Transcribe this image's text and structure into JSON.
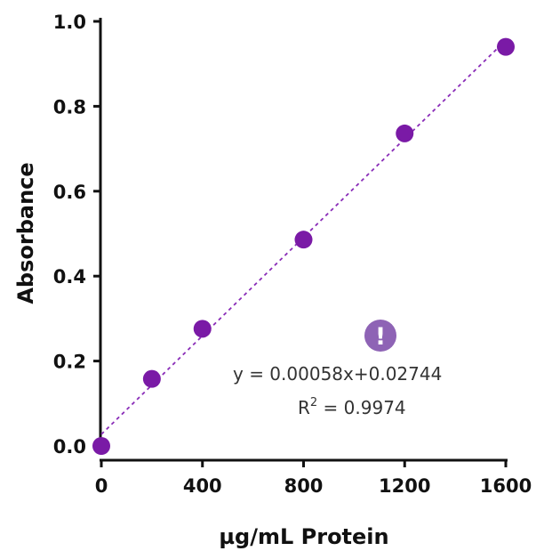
{
  "chart_data": {
    "type": "scatter",
    "title": "",
    "xlabel": "µg/mL Protein",
    "ylabel": "Absorbance",
    "xlim": [
      0,
      1600
    ],
    "ylim": [
      0.0,
      1.0
    ],
    "x_ticks": [
      0,
      400,
      800,
      1200,
      1600
    ],
    "x_tick_labels": [
      "0",
      "400",
      "800",
      "1200",
      "1600"
    ],
    "y_ticks": [
      0.0,
      0.2,
      0.4,
      0.6,
      0.8,
      1.0
    ],
    "y_tick_labels": [
      "0.0",
      "0.2",
      "0.4",
      "0.6",
      "0.8",
      "1.0"
    ],
    "grid": false,
    "series": [
      {
        "x": [
          0,
          200,
          400,
          800,
          1200,
          1600
        ],
        "y": [
          0.0,
          0.158,
          0.276,
          0.486,
          0.736,
          0.94
        ],
        "color": "#7a1aa6"
      }
    ],
    "trendline": {
      "slope": 0.00058,
      "intercept": 0.02744,
      "x_range": [
        0,
        1600
      ],
      "color": "#8a2db8",
      "style": "dashed"
    },
    "annotations": {
      "equation": "y = 0.00058x+0.02744",
      "r2_prefix": "R",
      "r2_sup": "2",
      "r2_suffix": " = 0.9974",
      "icon": "exclamation-icon",
      "icon_color": "#8e63b5",
      "icon_glyph": "!"
    }
  }
}
